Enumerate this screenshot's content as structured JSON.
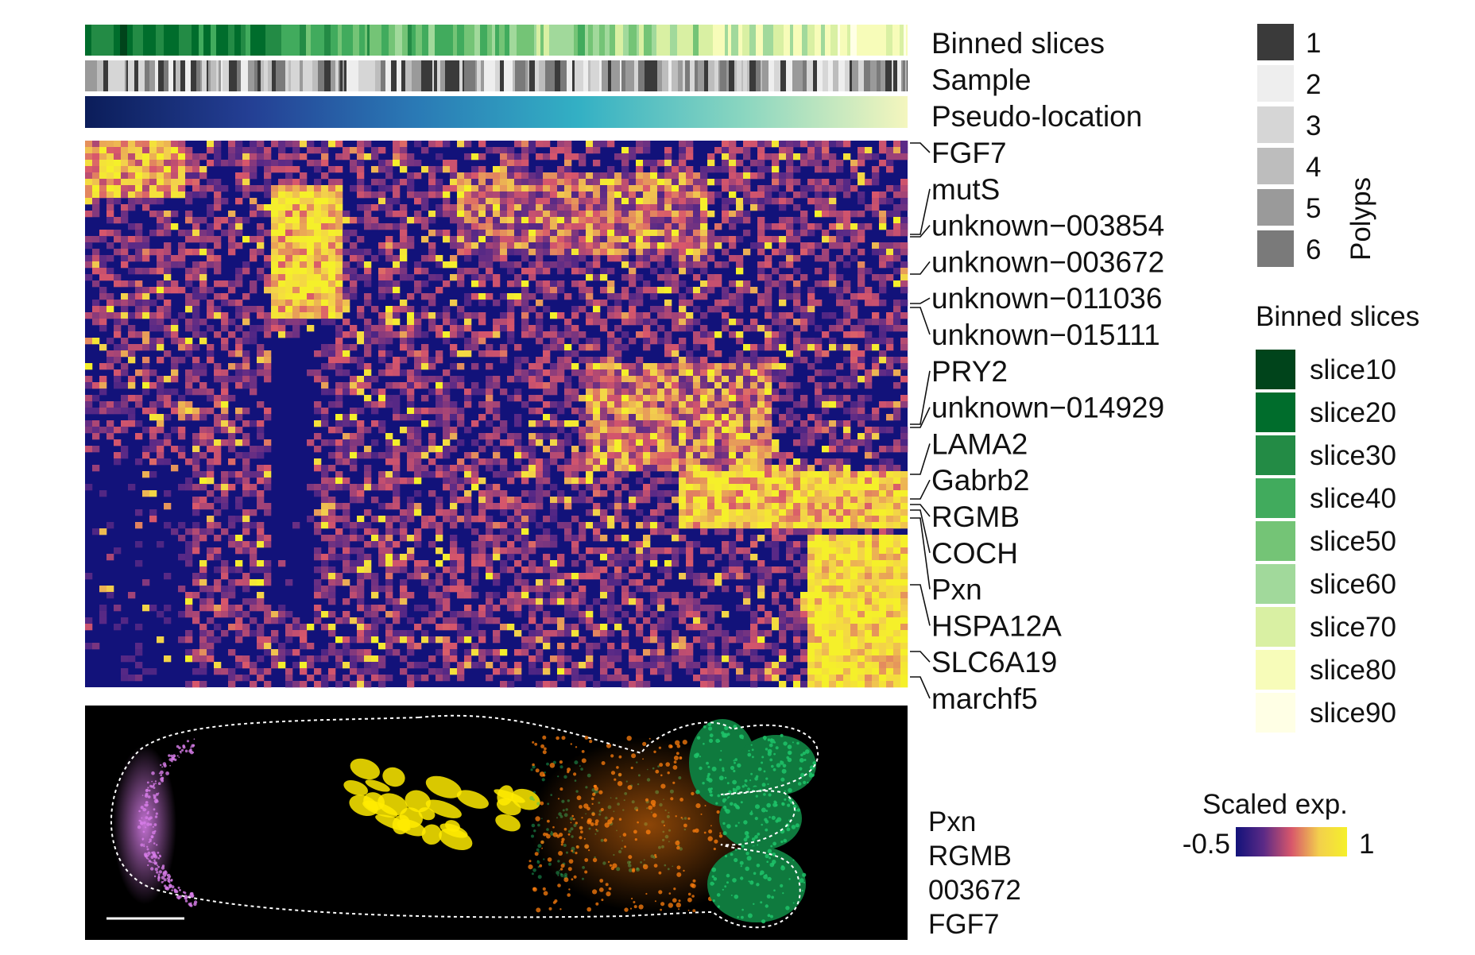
{
  "chart_data": {
    "type": "heatmap",
    "annotation_tracks": [
      "Binned slices",
      "Sample",
      "Pseudo-location"
    ],
    "gene_labels": [
      "FGF7",
      "mutS",
      "unknown−003854",
      "unknown−003672",
      "unknown−011036",
      "unknown−015111",
      "PRY2",
      "unknown−014929",
      "LAMA2",
      "Gabrb2",
      "RGMB",
      "COCH",
      "Pxn",
      "HSPA12A",
      "SLC6A19",
      "marchf5"
    ],
    "legend_polyps": {
      "title": "Polyps",
      "entries": [
        "1",
        "2",
        "3",
        "4",
        "5",
        "6"
      ],
      "colors": [
        "#3a3a3a",
        "#eeeeee",
        "#d6d6d6",
        "#bdbdbd",
        "#9a9a9a",
        "#7a7a7a"
      ]
    },
    "legend_slices": {
      "title": "Binned slices",
      "entries": [
        "slice10",
        "slice20",
        "slice30",
        "slice40",
        "slice50",
        "slice60",
        "slice70",
        "slice80",
        "slice90"
      ],
      "colors": [
        "#00441b",
        "#006d2c",
        "#238b45",
        "#41ab5d",
        "#74c476",
        "#a1d99b",
        "#d9f0a3",
        "#f7fcb9",
        "#ffffe5"
      ]
    },
    "colorbar": {
      "title": "Scaled exp.",
      "min_label": "-0.5",
      "max_label": "1",
      "range": [
        -0.5,
        1
      ],
      "colors": [
        "#12127a",
        "#5b2a86",
        "#d8576b",
        "#f3d04c",
        "#f5f02a"
      ]
    },
    "pseudo_location_colors": [
      "#0b1d5a",
      "#243f94",
      "#2a79b5",
      "#33b0c4",
      "#8ad6c0",
      "#f4f6be"
    ],
    "image_legend": {
      "entries": [
        "Pxn",
        "RGMB",
        "003672",
        "FGF7"
      ],
      "colors": [
        "#ff7f0e",
        "#1fc46a",
        "#ffeb00",
        "#d77de8"
      ]
    }
  }
}
